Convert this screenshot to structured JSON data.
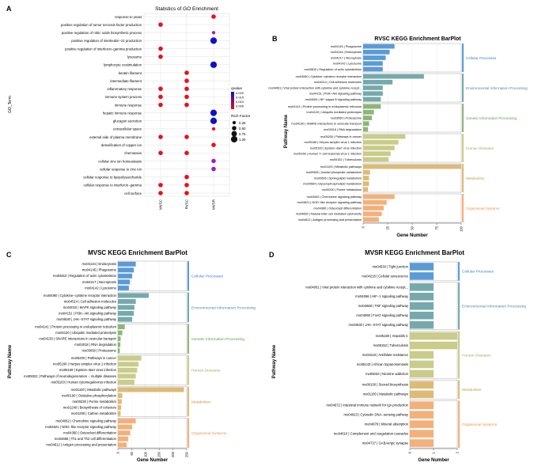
{
  "colors": {
    "dot_red": "#e8101a",
    "dot_purple": "#9a20c8",
    "dot_blue": "#1010c8",
    "grid": "#e0e0e0",
    "panel_border": "#999999",
    "cellular": "#5b9bd5",
    "environmental": "#76a9ac",
    "genetic": "#8db57a",
    "human": "#c9cc8a",
    "metabolism": "#dcbb78",
    "organismal": "#f4b07a",
    "label_cellular": "#3f7fcf",
    "label_environmental": "#4b8f94",
    "label_genetic": "#5f9a54",
    "label_human": "#a7ab5a",
    "label_metabolism": "#c99a3a",
    "label_organismal": "#ee9744"
  },
  "chart_data": [
    {
      "panel": "A",
      "type": "scatter",
      "title": "Statistics of GO Enrichment",
      "xlabel": "",
      "ylabel": "GO_Term",
      "x": [
        "MVSC",
        "RVSC",
        "MVSR"
      ],
      "terms": [
        "response to yeast",
        "positive regulation of tumor necrosis factor production",
        "positive regulation of nitric oxide biosynthetic process",
        "positive regulation of interleukin−21 production",
        "positive regulation of interferon−gamma production",
        "lysosome",
        "lymphocyte costimulation",
        "keratin filament",
        "intermediate filament",
        "inflammatory response",
        "immune system process",
        "immune response",
        "hepatic immune response",
        "glucagon secretion",
        "extracellular space",
        "external side of plasma membrane",
        "detoxification of copper ion",
        "chemotaxis",
        "cellular zinc ion homeostasis",
        "cellular response to zinc ion",
        "cellular response to lipopolysaccharide",
        "cellular response to interferon−gamma",
        "cell surface"
      ],
      "points": [
        {
          "term": 0,
          "x": 2,
          "color": "red",
          "size": 0.5
        },
        {
          "term": 1,
          "x": 0,
          "color": "red",
          "size": 0.5
        },
        {
          "term": 2,
          "x": 2,
          "color": "purple",
          "size": 0.25
        },
        {
          "term": 3,
          "x": 2,
          "color": "blue",
          "size": 1.0
        },
        {
          "term": 4,
          "x": 0,
          "color": "red",
          "size": 0.5
        },
        {
          "term": 5,
          "x": 0,
          "color": "red",
          "size": 0.5
        },
        {
          "term": 6,
          "x": 2,
          "color": "blue",
          "size": 1.0
        },
        {
          "term": 7,
          "x": 1,
          "color": "red",
          "size": 0.5
        },
        {
          "term": 8,
          "x": 1,
          "color": "red",
          "size": 0.5
        },
        {
          "term": 9,
          "x": 0,
          "color": "red",
          "size": 0.5
        },
        {
          "term": 9,
          "x": 1,
          "color": "red",
          "size": 0.5
        },
        {
          "term": 10,
          "x": 0,
          "color": "red",
          "size": 0.5
        },
        {
          "term": 10,
          "x": 1,
          "color": "red",
          "size": 0.5
        },
        {
          "term": 11,
          "x": 0,
          "color": "red",
          "size": 0.5
        },
        {
          "term": 11,
          "x": 1,
          "color": "red",
          "size": 0.5
        },
        {
          "term": 12,
          "x": 2,
          "color": "blue",
          "size": 1.0
        },
        {
          "term": 13,
          "x": 2,
          "color": "blue",
          "size": 1.0
        },
        {
          "term": 14,
          "x": 2,
          "color": "red",
          "size": 0.25
        },
        {
          "term": 15,
          "x": 0,
          "color": "red",
          "size": 0.5
        },
        {
          "term": 15,
          "x": 1,
          "color": "red",
          "size": 0.5
        },
        {
          "term": 16,
          "x": 2,
          "color": "red",
          "size": 0.5
        },
        {
          "term": 17,
          "x": 0,
          "color": "red",
          "size": 0.5
        },
        {
          "term": 17,
          "x": 1,
          "color": "red",
          "size": 0.5
        },
        {
          "term": 18,
          "x": 2,
          "color": "purple",
          "size": 0.5
        },
        {
          "term": 19,
          "x": 2,
          "color": "purple",
          "size": 0.5
        },
        {
          "term": 20,
          "x": 1,
          "color": "red",
          "size": 0.5
        },
        {
          "term": 21,
          "x": 0,
          "color": "red",
          "size": 0.5
        },
        {
          "term": 21,
          "x": 1,
          "color": "red",
          "size": 0.5
        },
        {
          "term": 22,
          "x": 0,
          "color": "red",
          "size": 0.5
        },
        {
          "term": 22,
          "x": 1,
          "color": "red",
          "size": 0.5
        }
      ],
      "legend_color": {
        "title": "qvalue",
        "ticks": [
          "0.020",
          "0.015",
          "0.010",
          "0.005"
        ]
      },
      "legend_size": {
        "title": "Rich Factor",
        "ticks": [
          "0.25",
          "0.50",
          "0.75",
          "1.00"
        ],
        "values": [
          0.25,
          0.5,
          0.75,
          1.0
        ]
      }
    },
    {
      "panel": "B",
      "type": "bar",
      "title": "RVSC KEGG Enrichment BarPlot",
      "xlabel": "Gene Number",
      "ylabel": "Pathway Name",
      "xlim": [
        0,
        100
      ],
      "xticks": [
        "0",
        "25",
        "50",
        "75",
        "100"
      ],
      "groups": [
        {
          "label": "Cellular Processes",
          "color": "cellular",
          "items": [
            {
              "name": "mo04145 | Phagosome",
              "value": 32
            },
            {
              "name": "mo04144 | Endocytosis",
              "value": 27
            },
            {
              "name": "mo04217 | Necroptosis",
              "value": 23
            },
            {
              "name": "mo04142 | Lysosome",
              "value": 20
            },
            {
              "name": "mo04810 | Regulation of actin cytoskeleton",
              "value": 20
            }
          ]
        },
        {
          "label": "Environmental Information Processing",
          "color": "environmental",
          "items": [
            {
              "name": "mo04060 | Cytokine−cytokine receptor interaction",
              "value": 62
            },
            {
              "name": "mo04514 | Cell adhesion molecules",
              "value": 30
            },
            {
              "name": "mo04061 | Viral protein interaction with cytokine and cytokine recept...",
              "value": 20
            },
            {
              "name": "mo04151 | PI3K−Akt signaling pathway",
              "value": 20
            },
            {
              "name": "mo04064 | NF−kappa B signaling pathway",
              "value": 18
            }
          ]
        },
        {
          "label": "Genetic Information Processing",
          "color": "genetic",
          "items": [
            {
              "name": "mo04141 | Protein processing in endoplasmic reticulum",
              "value": 18
            },
            {
              "name": "mo04120 | Ubiquitin mediated proteolysis",
              "value": 11
            },
            {
              "name": "mo03050 | Proteasome",
              "value": 9
            },
            {
              "name": "mo04130 | SNARE interactions in vesicular transport",
              "value": 6
            },
            {
              "name": "mo03018 | RNA degradation",
              "value": 5
            }
          ]
        },
        {
          "label": "Human Diseases",
          "color": "human",
          "items": [
            {
              "name": "mo05200 | Pathways in cancer",
              "value": 43
            },
            {
              "name": "mo05168 | Herpes simplex virus 1 infection",
              "value": 36
            },
            {
              "name": "mo05169 | Epstein−Barr virus infection",
              "value": 32
            },
            {
              "name": "mo05166 | Human T−cell leukemia virus 1 infection",
              "value": 28
            },
            {
              "name": "mo05152 | Tuberculosis",
              "value": 26
            }
          ]
        },
        {
          "label": "Metabolism",
          "color": "metabolism",
          "items": [
            {
              "name": "mo01100 | Metabolic pathways",
              "value": 100
            },
            {
              "name": "mo00565 | Inositol phosphate metabolism",
              "value": 7
            },
            {
              "name": "mo00600 | Sphingolipid metabolism",
              "value": 6
            },
            {
              "name": "mo00564 | Glycerophospholipid metabolism",
              "value": 6
            },
            {
              "name": "mo00230 | Purine metabolism",
              "value": 5
            }
          ]
        },
        {
          "label": "Organismal Systems",
          "color": "organismal",
          "items": [
            {
              "name": "mo04062 | Chemokine signaling pathway",
              "value": 32
            },
            {
              "name": "mo04621 | NOD−like receptor signaling pathway",
              "value": 24
            },
            {
              "name": "mo04380 | Osteoclast differentiation",
              "value": 21
            },
            {
              "name": "mo04650 | Natural killer cell mediated cytotoxicity",
              "value": 19
            },
            {
              "name": "mo04612 | Antigen processing and presentation",
              "value": 16
            }
          ]
        }
      ]
    },
    {
      "panel": "C",
      "type": "bar",
      "title": "MVSC KEGG Enrichment BarPlot",
      "xlabel": "Gene Number",
      "ylabel": "Pathway Name",
      "xlim": [
        0,
        250
      ],
      "xticks": [
        "0",
        "50",
        "100",
        "150",
        "200",
        "250"
      ],
      "groups": [
        {
          "label": "Cellular Processes",
          "color": "cellular",
          "items": [
            {
              "name": "mo04144 | Endocytosis",
              "value": 65
            },
            {
              "name": "mo04145 | Phagosome",
              "value": 58
            },
            {
              "name": "mo04810 | Regulation of actin cytoskeleton",
              "value": 52
            },
            {
              "name": "mo04217 | Necroptosis",
              "value": 44
            },
            {
              "name": "mo04142 | Lysosome",
              "value": 40
            }
          ]
        },
        {
          "label": "Environmental Information Processing",
          "color": "environmental",
          "items": [
            {
              "name": "mo04060 | Cytokine−cytokine receptor interaction",
              "value": 112
            },
            {
              "name": "mo04514 | Cell adhesion molecules",
              "value": 65
            },
            {
              "name": "mo04010 | MAPK signaling pathway",
              "value": 60
            },
            {
              "name": "mo04151 | PI3K−Akt signaling pathway",
              "value": 58
            },
            {
              "name": "mo04630 | JAK−STAT signaling pathway",
              "value": 52
            }
          ]
        },
        {
          "label": "Genetic Information Processing",
          "color": "genetic",
          "items": [
            {
              "name": "mo04141 | Protein processing in endoplasmic reticulum",
              "value": 25
            },
            {
              "name": "mo04120 | Ubiquitin mediated proteolysis",
              "value": 16
            },
            {
              "name": "mo04130 | SNARE interactions in vesicular transport",
              "value": 10
            },
            {
              "name": "mo03018 | RNA degradation",
              "value": 9
            },
            {
              "name": "mo03050 | Proteasome",
              "value": 7
            }
          ]
        },
        {
          "label": "Human Diseases",
          "color": "human",
          "items": [
            {
              "name": "mo05200 | Pathways in cancer",
              "value": 85
            },
            {
              "name": "mo05168 | Herpes simplex virus 1 infection",
              "value": 75
            },
            {
              "name": "mo05169 | Epstein−Barr virus infection",
              "value": 70
            },
            {
              "name": "mo05022 | Pathways of neurodegeneration − multiple diseases",
              "value": 65
            },
            {
              "name": "mo05163 | Human cytomegalovirus infection",
              "value": 60
            }
          ]
        },
        {
          "label": "Metabolism",
          "color": "metabolism",
          "items": [
            {
              "name": "mo01100 | Metabolic pathways",
              "value": 240
            },
            {
              "name": "mo00190 | Oxidative phosphorylation",
              "value": 16
            },
            {
              "name": "mo00230 | Purine metabolism",
              "value": 14
            },
            {
              "name": "mo01240 | Biosynthesis of cofactors",
              "value": 12
            },
            {
              "name": "mo01200 | Carbon metabolism",
              "value": 10
            }
          ]
        },
        {
          "label": "Organismal Systems",
          "color": "organismal",
          "items": [
            {
              "name": "mo04062 | Chemokine signaling pathway",
              "value": 65
            },
            {
              "name": "mo04621 | NOD−like receptor signaling pathway",
              "value": 52
            },
            {
              "name": "mo04380 | Osteoclast differentiation",
              "value": 45
            },
            {
              "name": "mo04658 | Th1 and Th2 cell differentiation",
              "value": 38
            },
            {
              "name": "mo04612 | Antigen processing and presentation",
              "value": 32
            }
          ]
        }
      ]
    },
    {
      "panel": "D",
      "type": "bar",
      "title": "MVSR KEGG Enrichment BarPlot",
      "xlabel": "Gene Number",
      "ylabel": "Pathway Name",
      "xlim": [
        0,
        2
      ],
      "xticks": [
        "0",
        "1",
        "2"
      ],
      "groups": [
        {
          "label": "Cellular Processes",
          "color": "cellular",
          "items": [
            {
              "name": "mo04530 | Tight junction",
              "value": 1
            },
            {
              "name": "mo04218 | Cellular senescence",
              "value": 1
            }
          ]
        },
        {
          "label": "Environmental Information Processing",
          "color": "environmental",
          "items": [
            {
              "name": "mo04061 | Viral protein interaction with cytokine and cytokine recept...",
              "value": 1
            },
            {
              "name": "mo04066 | HIF−1 signaling pathway",
              "value": 1
            },
            {
              "name": "mo04668 | TNF signaling pathway",
              "value": 1
            },
            {
              "name": "mo04068 | FoxO signaling pathway",
              "value": 1
            },
            {
              "name": "mo04630 | JAK−STAT signaling pathway",
              "value": 1
            }
          ]
        },
        {
          "label": "Human Diseases",
          "color": "human",
          "items": [
            {
              "name": "mo05160 | Hepatitis C",
              "value": 2
            },
            {
              "name": "mo05152 | Tuberculosis",
              "value": 2
            },
            {
              "name": "mo01523 | Antifolate resistance",
              "value": 1
            },
            {
              "name": "mo05143 | African trypanosomiasis",
              "value": 1
            },
            {
              "name": "mo05033 | Nicotine addiction",
              "value": 1
            }
          ]
        },
        {
          "label": "Metabolism",
          "color": "metabolism",
          "items": [
            {
              "name": "mo00100 | Steroid biosynthesis",
              "value": 1
            },
            {
              "name": "mo01100 | Metabolic pathways",
              "value": 1
            }
          ]
        },
        {
          "label": "Organismal Systems",
          "color": "organismal",
          "items": [
            {
              "name": "mo04672 | Intestinal immune network for IgA production",
              "value": 1
            },
            {
              "name": "mo04623 | Cytosolic DNA−sensing pathway",
              "value": 1
            },
            {
              "name": "mo04978 | Mineral absorption",
              "value": 1
            },
            {
              "name": "mo04610 | Complement and coagulation cascades",
              "value": 1
            },
            {
              "name": "mo04727 | GABAergic synapse",
              "value": 1
            }
          ]
        }
      ]
    }
  ]
}
